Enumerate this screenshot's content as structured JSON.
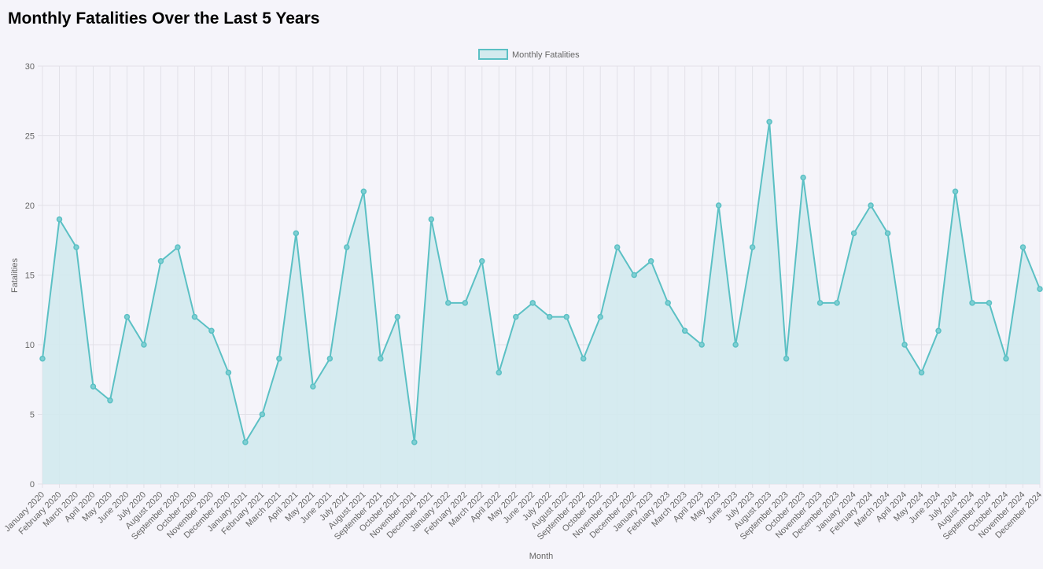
{
  "chart_data": {
    "type": "line",
    "title": "Monthly Fatalities Over the Last 5 Years",
    "xlabel": "Month",
    "ylabel": "Fatalities",
    "ylim": [
      0,
      30
    ],
    "yticks": [
      0,
      5,
      10,
      15,
      20,
      25,
      30
    ],
    "grid": true,
    "legend_position": "top-center",
    "fill": true,
    "colors": {
      "line": "#5bc0c4",
      "fill": "#d3eaee",
      "grid": "#e2e1e8"
    },
    "categories": [
      "January 2020",
      "February 2020",
      "March 2020",
      "April 2020",
      "May 2020",
      "June 2020",
      "July 2020",
      "August 2020",
      "September 2020",
      "October 2020",
      "November 2020",
      "December 2020",
      "January 2021",
      "February 2021",
      "March 2021",
      "April 2021",
      "May 2021",
      "June 2021",
      "July 2021",
      "August 2021",
      "September 2021",
      "October 2021",
      "November 2021",
      "December 2021",
      "January 2022",
      "February 2022",
      "March 2022",
      "April 2022",
      "May 2022",
      "June 2022",
      "July 2022",
      "August 2022",
      "September 2022",
      "October 2022",
      "November 2022",
      "December 2022",
      "January 2023",
      "February 2023",
      "March 2023",
      "April 2023",
      "May 2023",
      "June 2023",
      "July 2023",
      "August 2023",
      "September 2023",
      "October 2023",
      "November 2023",
      "December 2023",
      "January 2024",
      "February 2024",
      "March 2024",
      "April 2024",
      "May 2024",
      "June 2024",
      "July 2024",
      "August 2024",
      "September 2024",
      "October 2024",
      "November 2024",
      "December 2024"
    ],
    "series": [
      {
        "name": "Monthly Fatalities",
        "values": [
          9,
          19,
          17,
          7,
          6,
          12,
          10,
          16,
          17,
          12,
          11,
          8,
          3,
          5,
          9,
          18,
          7,
          9,
          17,
          21,
          9,
          12,
          3,
          19,
          13,
          13,
          16,
          8,
          12,
          13,
          12,
          12,
          9,
          12,
          17,
          15,
          16,
          13,
          11,
          10,
          20,
          10,
          17,
          26,
          9,
          22,
          13,
          13,
          18,
          20,
          18,
          10,
          8,
          11,
          21,
          13,
          13,
          9,
          17,
          14
        ]
      }
    ]
  }
}
